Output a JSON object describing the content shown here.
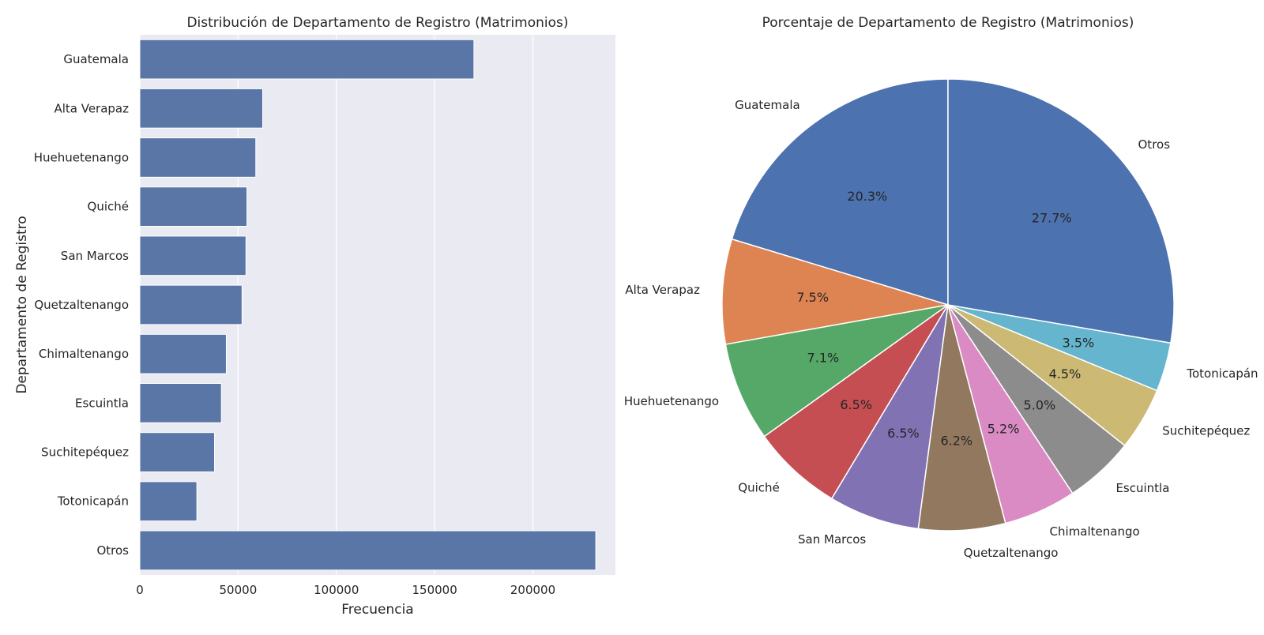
{
  "colors": {
    "plot_bg": "#eaeaf2",
    "grid": "#ffffff",
    "bar": "#5a76a6",
    "pie_edge": "#ffffff",
    "pie": [
      "#4c72b0",
      "#dd8452",
      "#55a868",
      "#c44e52",
      "#8172b3",
      "#937860",
      "#da8bc3",
      "#8c8c8c",
      "#ccb974",
      "#64b5cd",
      "#4c72b0"
    ]
  },
  "chart_data": [
    {
      "type": "bar",
      "orientation": "horizontal",
      "title": "Distribución de Departamento de Registro (Matrimonios)",
      "xlabel": "Frecuencia",
      "ylabel": "Departamento de Registro",
      "categories": [
        "Guatemala",
        "Alta Verapaz",
        "Huehuetenango",
        "Quiché",
        "San Marcos",
        "Quetzaltenango",
        "Chimaltenango",
        "Escuintla",
        "Suchitepéquez",
        "Totonicapán",
        "Otros"
      ],
      "values": [
        170000,
        62500,
        59000,
        54500,
        54000,
        52000,
        44000,
        41500,
        38000,
        29000,
        232000
      ],
      "xlim": [
        0,
        242000
      ],
      "xticks": [
        0,
        50000,
        100000,
        150000,
        200000
      ],
      "xtick_labels": [
        "0",
        "50000",
        "100000",
        "150000",
        "200000"
      ],
      "grid": true
    },
    {
      "type": "pie",
      "title": "Porcentaje de Departamento de Registro (Matrimonios)",
      "labels": [
        "Guatemala",
        "Alta Verapaz",
        "Huehuetenango",
        "Quiché",
        "San Marcos",
        "Quetzaltenango",
        "Chimaltenango",
        "Escuintla",
        "Suchitepéquez",
        "Totonicapán",
        "Otros"
      ],
      "values": [
        20.3,
        7.5,
        7.1,
        6.5,
        6.5,
        6.2,
        5.2,
        5.0,
        4.5,
        3.5,
        27.7
      ],
      "value_labels": [
        "20.3%",
        "7.5%",
        "7.1%",
        "6.5%",
        "6.5%",
        "6.2%",
        "5.2%",
        "5.0%",
        "4.5%",
        "3.5%",
        "27.7%"
      ],
      "start_angle": 90,
      "direction": "counterclockwise"
    }
  ]
}
